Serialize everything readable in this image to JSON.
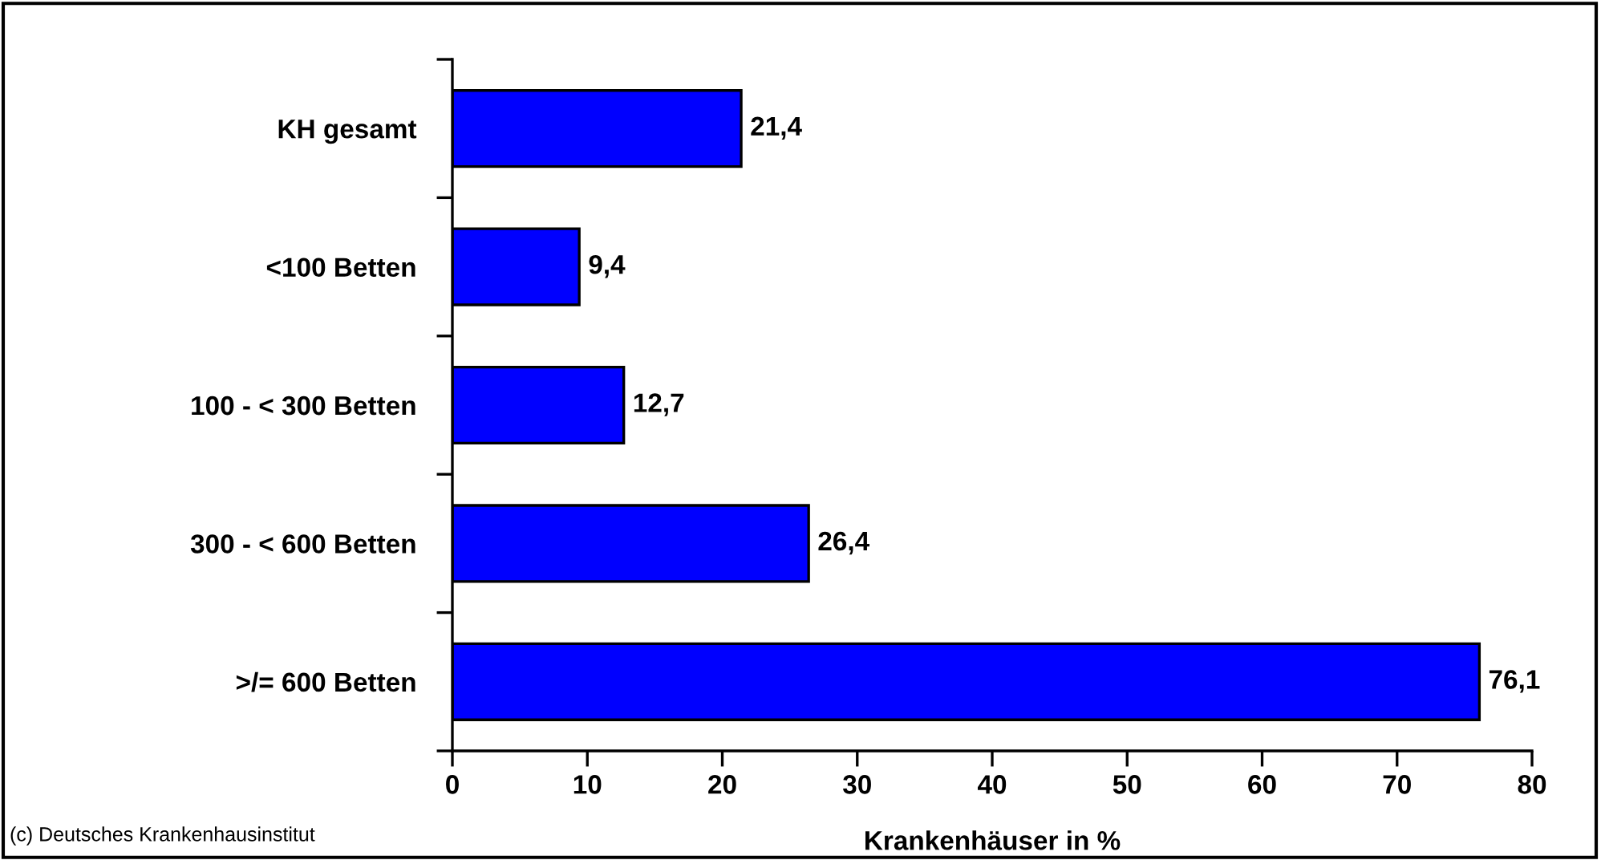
{
  "chart_data": {
    "type": "bar",
    "orientation": "horizontal",
    "xlabel": "Krankenhäuser in %",
    "categories": [
      "KH gesamt",
      "<100 Betten",
      "100 - < 300 Betten",
      "300 - < 600 Betten",
      ">/= 600 Betten"
    ],
    "values": [
      21.4,
      9.4,
      12.7,
      26.4,
      76.1
    ],
    "value_labels": [
      "21,4",
      "9,4",
      "12,7",
      "26,4",
      "76,1"
    ],
    "color": "#0000ff",
    "xlim": [
      0,
      80
    ],
    "xticks": [
      0,
      10,
      20,
      30,
      40,
      50,
      60,
      70,
      80
    ],
    "grid": false,
    "legend": false,
    "annotations": [
      "(c) Deutsches Krankenhausinstitut"
    ]
  }
}
